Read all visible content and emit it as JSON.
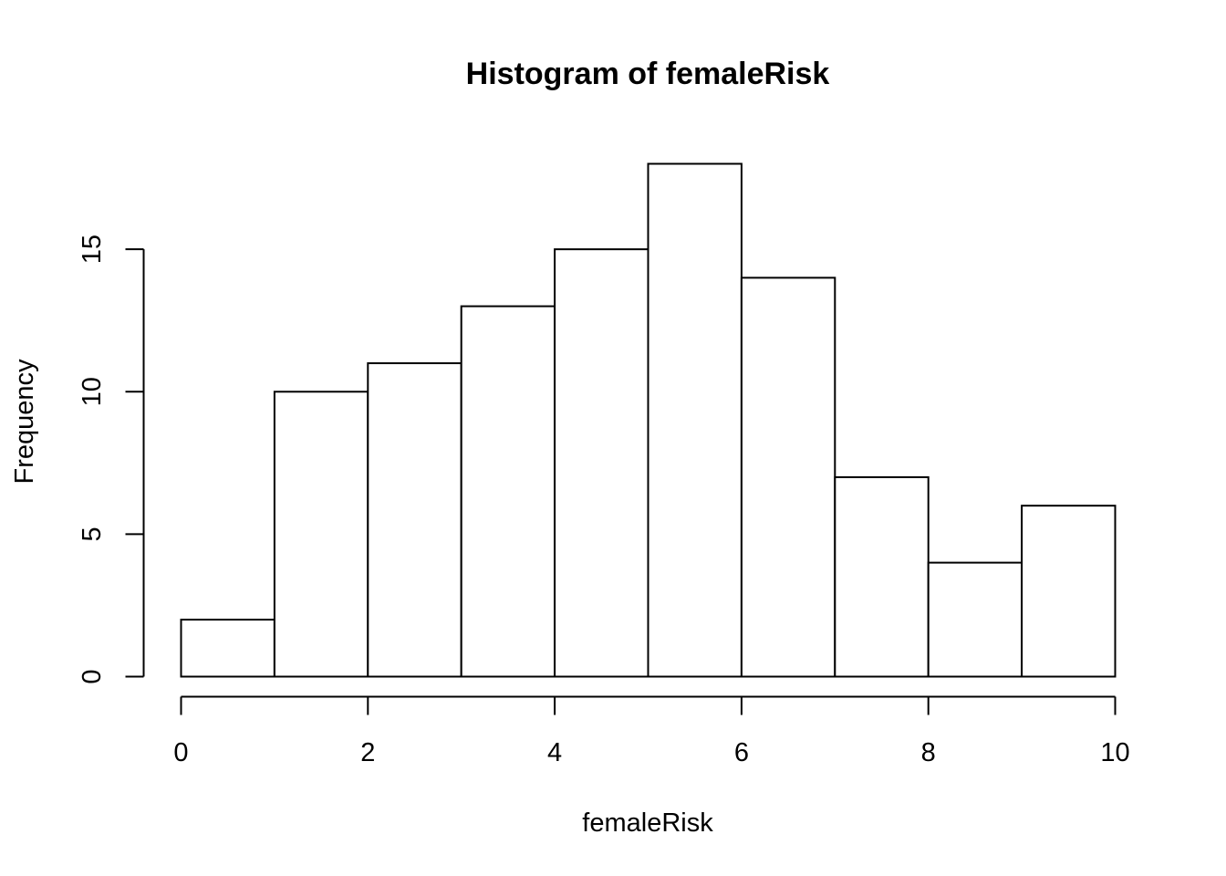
{
  "chart_data": {
    "type": "bar",
    "title": "Histogram of femaleRisk",
    "xlabel": "femaleRisk",
    "ylabel": "Frequency",
    "bin_edges": [
      0,
      1,
      2,
      3,
      4,
      5,
      6,
      7,
      8,
      9,
      10
    ],
    "values": [
      2,
      10,
      11,
      13,
      15,
      18,
      14,
      7,
      4,
      6
    ],
    "xlim": [
      0,
      10
    ],
    "ylim": [
      0,
      18
    ],
    "x_ticks": [
      0,
      2,
      4,
      6,
      8,
      10
    ],
    "x_tick_labels": [
      "0",
      "2",
      "4",
      "6",
      "8",
      "10"
    ],
    "y_ticks": [
      0,
      5,
      10,
      15
    ],
    "y_tick_labels": [
      "0",
      "5",
      "10",
      "15"
    ],
    "grid": false,
    "colors": {
      "bar_fill": "#ffffff",
      "bar_stroke": "#000000"
    }
  }
}
